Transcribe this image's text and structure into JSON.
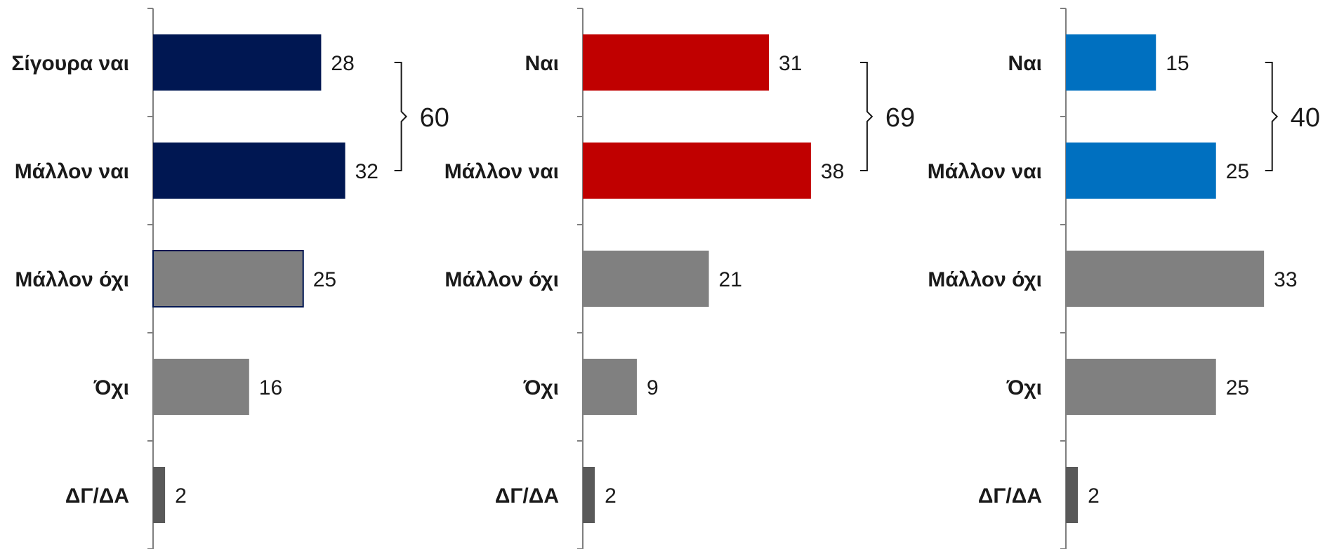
{
  "chart_data": [
    {
      "type": "bar",
      "orientation": "horizontal",
      "categories": [
        "Σίγουρα ναι",
        "Μάλλον ναι",
        "Μάλλον όχι",
        "Όχι",
        "ΔΓ/ΔΑ"
      ],
      "values": [
        28,
        32,
        25,
        16,
        2
      ],
      "bar_colors": [
        "#001752",
        "#001752",
        "#808080",
        "#808080",
        "#595959"
      ],
      "bar_outlines": [
        "",
        "",
        "#001752",
        "",
        ""
      ],
      "grouped_total": {
        "value": 60,
        "covers": [
          0,
          1
        ]
      }
    },
    {
      "type": "bar",
      "orientation": "horizontal",
      "categories": [
        "Ναι",
        "Μάλλον ναι",
        "Μάλλον όχι",
        "Όχι",
        "ΔΓ/ΔΑ"
      ],
      "values": [
        31,
        38,
        21,
        9,
        2
      ],
      "bar_colors": [
        "#c00000",
        "#c00000",
        "#808080",
        "#808080",
        "#595959"
      ],
      "bar_outlines": [
        "",
        "",
        "",
        "",
        ""
      ],
      "grouped_total": {
        "value": 69,
        "covers": [
          0,
          1
        ]
      }
    },
    {
      "type": "bar",
      "orientation": "horizontal",
      "categories": [
        "Ναι",
        "Μάλλον ναι",
        "Μάλλον όχι",
        "Όχι",
        "ΔΓ/ΔΑ"
      ],
      "values": [
        15,
        25,
        33,
        25,
        2
      ],
      "bar_colors": [
        "#0070c0",
        "#0070c0",
        "#808080",
        "#808080",
        "#595959"
      ],
      "bar_outlines": [
        "",
        "",
        "",
        "",
        ""
      ],
      "grouped_total": {
        "value": 40,
        "covers": [
          0,
          1
        ]
      }
    }
  ]
}
